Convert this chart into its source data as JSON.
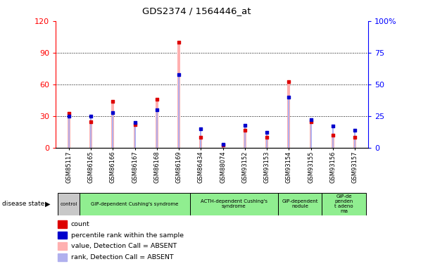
{
  "title": "GDS2374 / 1564446_at",
  "samples": [
    "GSM85117",
    "GSM86165",
    "GSM86166",
    "GSM86167",
    "GSM86168",
    "GSM86169",
    "GSM86434",
    "GSM88074",
    "GSM93152",
    "GSM93153",
    "GSM93154",
    "GSM93155",
    "GSM93156",
    "GSM93157"
  ],
  "count_values": [
    33,
    25,
    44,
    22,
    46,
    100,
    10,
    3,
    17,
    10,
    63,
    25,
    12,
    10
  ],
  "rank_values": [
    25,
    25,
    28,
    20,
    30,
    58,
    15,
    3,
    18,
    12,
    40,
    22,
    17,
    14
  ],
  "left_yticks": [
    0,
    30,
    60,
    90,
    120
  ],
  "right_yticks": [
    0,
    25,
    50,
    75,
    100
  ],
  "ylim_left": [
    0,
    120
  ],
  "ylim_right": [
    0,
    100
  ],
  "group_starts": [
    0,
    1,
    6,
    10,
    12
  ],
  "group_ends": [
    1,
    6,
    10,
    12,
    14
  ],
  "group_labels": [
    "control",
    "GIP-dependent Cushing's syndrome",
    "ACTH-dependent Cushing's\nsyndrome",
    "GIP-dependent\nnodule",
    "GIP-de\npenden\nt adeno\nma"
  ],
  "group_colors": [
    "#c8c8c8",
    "#90ee90",
    "#90ee90",
    "#90ee90",
    "#90ee90"
  ],
  "bar_color_pink": "#ffb0b0",
  "bar_color_blue": "#b0b0ee",
  "dot_color_red": "#dd0000",
  "dot_color_blue": "#0000cc",
  "legend_items": [
    {
      "label": "count",
      "color": "#dd0000"
    },
    {
      "label": "percentile rank within the sample",
      "color": "#0000cc"
    },
    {
      "label": "value, Detection Call = ABSENT",
      "color": "#ffb0b0"
    },
    {
      "label": "rank, Detection Call = ABSENT",
      "color": "#b0b0ee"
    }
  ]
}
